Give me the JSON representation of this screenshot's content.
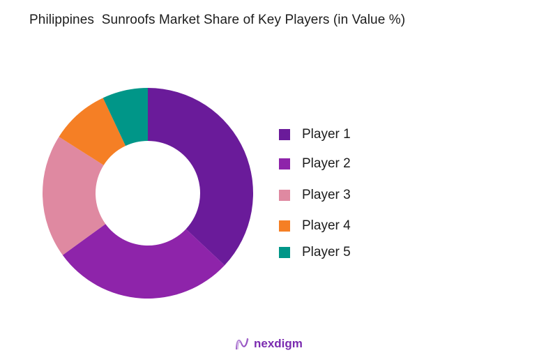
{
  "title": "Philippines  Sunroofs Market Share of Key Players (in Value %)",
  "brand": {
    "name": "nexdigm",
    "icon": "nexdigm-logo-icon"
  },
  "chart_data": {
    "type": "pie",
    "subtype": "donut",
    "title": "Philippines  Sunroofs Market Share of Key Players (in Value %)",
    "categories": [
      "Player 1",
      "Player 2",
      "Player 3",
      "Player 4",
      "Player 5"
    ],
    "values": [
      37,
      28,
      19,
      9,
      7
    ],
    "colors": [
      "#6a1b9a",
      "#8e24aa",
      "#df89a1",
      "#f57f25",
      "#009688"
    ],
    "start_angle": "12 o'clock, clockwise",
    "legend_position": "right",
    "unit": "%"
  },
  "legend": {
    "items": [
      {
        "label": "Player 1",
        "color": "#6a1b9a"
      },
      {
        "label": "Player 2",
        "color": "#8e24aa"
      },
      {
        "label": "Player 3",
        "color": "#df89a1"
      },
      {
        "label": "Player 4",
        "color": "#f57f25"
      },
      {
        "label": "Player 5",
        "color": "#009688"
      }
    ]
  }
}
